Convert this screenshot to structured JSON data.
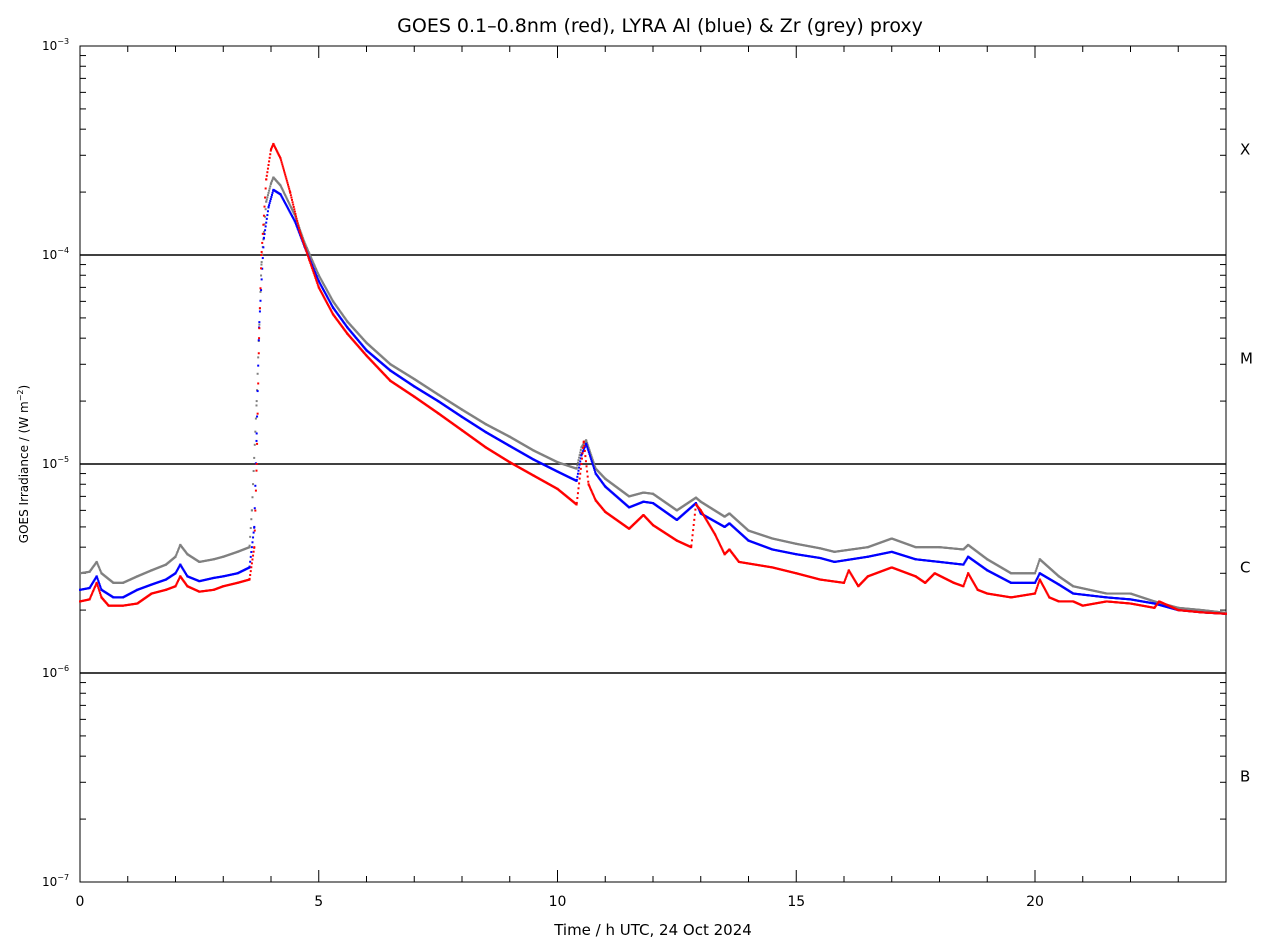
{
  "chart_data": {
    "type": "scatter",
    "title": "GOES 0.1–0.8nm (red), LYRA Al (blue) & Zr (grey) proxy",
    "xlabel": "Time / h UTC, 24 Oct 2024",
    "ylabel": "GOES Irradiance / (W m⁻²)",
    "ylabel_base": "GOES Irradiance / (W m",
    "ylabel_sup": "−2",
    "ylabel_end": ")",
    "xlim": [
      0,
      24
    ],
    "ylim": [
      1e-07,
      0.001
    ],
    "yscale": "log",
    "x_ticks": [
      0,
      5,
      10,
      15,
      20
    ],
    "x_tick_labels": [
      "0",
      "5",
      "10",
      "15",
      "20"
    ],
    "y_ticks": [
      {
        "value": 0.001,
        "base": "10",
        "exp": "−3"
      },
      {
        "value": 0.0001,
        "base": "10",
        "exp": "−4"
      },
      {
        "value": 1e-05,
        "base": "10",
        "exp": "−5"
      },
      {
        "value": 1e-06,
        "base": "10",
        "exp": "−6"
      },
      {
        "value": 1e-07,
        "base": "10",
        "exp": "−7"
      }
    ],
    "class_lines": [
      0.0001,
      1e-05,
      1e-06
    ],
    "class_labels": [
      {
        "label": "X",
        "value": 0.00032
      },
      {
        "label": "M",
        "value": 3.2e-05
      },
      {
        "label": "C",
        "value": 3.2e-06
      },
      {
        "label": "B",
        "value": 3.2e-07
      }
    ],
    "colors": {
      "goes": "#ff0000",
      "al": "#0000ff",
      "zr": "#808080",
      "axis": "#000000"
    },
    "series": [
      {
        "name": "GOES 0.1–0.8nm",
        "color": "#ff0000",
        "points": [
          [
            0.0,
            2.2e-06
          ],
          [
            0.2,
            2.25e-06
          ],
          [
            0.35,
            2.7e-06
          ],
          [
            0.45,
            2.3e-06
          ],
          [
            0.6,
            2.1e-06
          ],
          [
            0.9,
            2.1e-06
          ],
          [
            1.2,
            2.15e-06
          ],
          [
            1.5,
            2.4e-06
          ],
          [
            1.8,
            2.5e-06
          ],
          [
            2.0,
            2.6e-06
          ],
          [
            2.1,
            2.9e-06
          ],
          [
            2.25,
            2.6e-06
          ],
          [
            2.5,
            2.45e-06
          ],
          [
            2.8,
            2.5e-06
          ],
          [
            3.0,
            2.6e-06
          ],
          [
            3.3,
            2.7e-06
          ],
          [
            3.55,
            2.8e-06
          ],
          [
            3.65,
            4e-06
          ],
          [
            3.7,
            1e-05
          ],
          [
            3.75,
            4e-05
          ],
          [
            3.8,
            0.0001
          ],
          [
            3.9,
            0.00023
          ],
          [
            4.0,
            0.00032
          ],
          [
            4.05,
            0.00034
          ],
          [
            4.2,
            0.00029
          ],
          [
            4.4,
            0.0002
          ],
          [
            4.6,
            0.00013
          ],
          [
            4.8,
            9.5e-05
          ],
          [
            5.0,
            7e-05
          ],
          [
            5.3,
            5.2e-05
          ],
          [
            5.6,
            4.2e-05
          ],
          [
            6.0,
            3.3e-05
          ],
          [
            6.5,
            2.5e-05
          ],
          [
            7.0,
            2.1e-05
          ],
          [
            7.5,
            1.75e-05
          ],
          [
            8.0,
            1.45e-05
          ],
          [
            8.5,
            1.2e-05
          ],
          [
            9.0,
            1.02e-05
          ],
          [
            9.5,
            8.8e-06
          ],
          [
            10.0,
            7.6e-06
          ],
          [
            10.4,
            6.4e-06
          ],
          [
            10.5,
            1e-05
          ],
          [
            10.55,
            1.28e-05
          ],
          [
            10.65,
            8e-06
          ],
          [
            10.8,
            6.7e-06
          ],
          [
            11.0,
            5.9e-06
          ],
          [
            11.5,
            4.9e-06
          ],
          [
            11.8,
            5.7e-06
          ],
          [
            12.0,
            5.1e-06
          ],
          [
            12.5,
            4.3e-06
          ],
          [
            12.8,
            4e-06
          ],
          [
            12.9,
            6.4e-06
          ],
          [
            13.0,
            6e-06
          ],
          [
            13.3,
            4.6e-06
          ],
          [
            13.5,
            3.7e-06
          ],
          [
            13.6,
            3.9e-06
          ],
          [
            13.8,
            3.4e-06
          ],
          [
            14.5,
            3.2e-06
          ],
          [
            15.0,
            3e-06
          ],
          [
            15.5,
            2.8e-06
          ],
          [
            16.0,
            2.7e-06
          ],
          [
            16.1,
            3.1e-06
          ],
          [
            16.3,
            2.6e-06
          ],
          [
            16.5,
            2.9e-06
          ],
          [
            17.0,
            3.2e-06
          ],
          [
            17.5,
            2.9e-06
          ],
          [
            17.7,
            2.7e-06
          ],
          [
            17.9,
            3e-06
          ],
          [
            18.3,
            2.7e-06
          ],
          [
            18.5,
            2.6e-06
          ],
          [
            18.6,
            3e-06
          ],
          [
            18.8,
            2.5e-06
          ],
          [
            19.0,
            2.4e-06
          ],
          [
            19.5,
            2.3e-06
          ],
          [
            20.0,
            2.4e-06
          ],
          [
            20.1,
            2.8e-06
          ],
          [
            20.3,
            2.3e-06
          ],
          [
            20.5,
            2.2e-06
          ],
          [
            20.8,
            2.2e-06
          ],
          [
            21.0,
            2.1e-06
          ],
          [
            21.5,
            2.2e-06
          ],
          [
            22.0,
            2.15e-06
          ],
          [
            22.5,
            2.05e-06
          ],
          [
            22.6,
            2.2e-06
          ],
          [
            23.0,
            2e-06
          ],
          [
            23.5,
            1.95e-06
          ],
          [
            24.0,
            1.92e-06
          ]
        ]
      },
      {
        "name": "LYRA Al",
        "color": "#0000ff",
        "points": [
          [
            0.0,
            2.5e-06
          ],
          [
            0.2,
            2.55e-06
          ],
          [
            0.35,
            2.9e-06
          ],
          [
            0.45,
            2.5e-06
          ],
          [
            0.7,
            2.3e-06
          ],
          [
            0.9,
            2.3e-06
          ],
          [
            1.2,
            2.5e-06
          ],
          [
            1.5,
            2.65e-06
          ],
          [
            1.8,
            2.8e-06
          ],
          [
            2.0,
            3e-06
          ],
          [
            2.1,
            3.3e-06
          ],
          [
            2.25,
            2.9e-06
          ],
          [
            2.5,
            2.75e-06
          ],
          [
            2.8,
            2.85e-06
          ],
          [
            3.0,
            2.9e-06
          ],
          [
            3.3,
            3e-06
          ],
          [
            3.55,
            3.2e-06
          ],
          [
            3.65,
            5e-06
          ],
          [
            3.7,
            1.4e-05
          ],
          [
            3.75,
            4.5e-05
          ],
          [
            3.85,
            0.00012
          ],
          [
            3.95,
            0.00017
          ],
          [
            4.05,
            0.000205
          ],
          [
            4.2,
            0.000195
          ],
          [
            4.5,
            0.000145
          ],
          [
            4.7,
            0.00011
          ],
          [
            5.0,
            7.5e-05
          ],
          [
            5.3,
            5.6e-05
          ],
          [
            5.6,
            4.5e-05
          ],
          [
            6.0,
            3.5e-05
          ],
          [
            6.5,
            2.8e-05
          ],
          [
            7.0,
            2.35e-05
          ],
          [
            7.5,
            2e-05
          ],
          [
            8.0,
            1.68e-05
          ],
          [
            8.5,
            1.42e-05
          ],
          [
            9.0,
            1.22e-05
          ],
          [
            9.5,
            1.05e-05
          ],
          [
            10.0,
            9.2e-06
          ],
          [
            10.4,
            8.3e-06
          ],
          [
            10.5,
            1.1e-05
          ],
          [
            10.6,
            1.25e-05
          ],
          [
            10.8,
            9e-06
          ],
          [
            11.0,
            7.8e-06
          ],
          [
            11.5,
            6.2e-06
          ],
          [
            11.8,
            6.6e-06
          ],
          [
            12.0,
            6.5e-06
          ],
          [
            12.5,
            5.4e-06
          ],
          [
            12.9,
            6.5e-06
          ],
          [
            13.0,
            5.8e-06
          ],
          [
            13.5,
            5e-06
          ],
          [
            13.6,
            5.2e-06
          ],
          [
            14.0,
            4.3e-06
          ],
          [
            14.5,
            3.9e-06
          ],
          [
            15.0,
            3.7e-06
          ],
          [
            15.5,
            3.55e-06
          ],
          [
            15.8,
            3.4e-06
          ],
          [
            16.5,
            3.6e-06
          ],
          [
            17.0,
            3.8e-06
          ],
          [
            17.5,
            3.5e-06
          ],
          [
            18.0,
            3.4e-06
          ],
          [
            18.5,
            3.3e-06
          ],
          [
            18.6,
            3.6e-06
          ],
          [
            19.0,
            3.1e-06
          ],
          [
            19.5,
            2.7e-06
          ],
          [
            20.0,
            2.7e-06
          ],
          [
            20.1,
            3e-06
          ],
          [
            20.5,
            2.65e-06
          ],
          [
            20.8,
            2.4e-06
          ],
          [
            21.5,
            2.3e-06
          ],
          [
            22.0,
            2.25e-06
          ],
          [
            22.5,
            2.15e-06
          ],
          [
            23.0,
            2e-06
          ],
          [
            23.5,
            1.95e-06
          ],
          [
            24.0,
            1.92e-06
          ]
        ]
      },
      {
        "name": "LYRA Zr",
        "color": "#808080",
        "points": [
          [
            0.0,
            3e-06
          ],
          [
            0.2,
            3.05e-06
          ],
          [
            0.35,
            3.4e-06
          ],
          [
            0.45,
            3e-06
          ],
          [
            0.7,
            2.7e-06
          ],
          [
            0.9,
            2.7e-06
          ],
          [
            1.2,
            2.9e-06
          ],
          [
            1.5,
            3.1e-06
          ],
          [
            1.8,
            3.3e-06
          ],
          [
            2.0,
            3.6e-06
          ],
          [
            2.1,
            4.1e-06
          ],
          [
            2.25,
            3.7e-06
          ],
          [
            2.5,
            3.4e-06
          ],
          [
            2.8,
            3.5e-06
          ],
          [
            3.0,
            3.6e-06
          ],
          [
            3.3,
            3.8e-06
          ],
          [
            3.55,
            4e-06
          ],
          [
            3.6,
            6e-06
          ],
          [
            3.7,
            2e-05
          ],
          [
            3.8,
            9e-05
          ],
          [
            3.9,
            0.00018
          ],
          [
            4.0,
            0.00022
          ],
          [
            4.05,
            0.000235
          ],
          [
            4.2,
            0.000215
          ],
          [
            4.5,
            0.000155
          ],
          [
            4.7,
            0.000115
          ],
          [
            5.0,
            8e-05
          ],
          [
            5.3,
            6e-05
          ],
          [
            5.6,
            4.8e-05
          ],
          [
            6.0,
            3.8e-05
          ],
          [
            6.5,
            3e-05
          ],
          [
            7.0,
            2.55e-05
          ],
          [
            7.5,
            2.15e-05
          ],
          [
            8.0,
            1.82e-05
          ],
          [
            8.5,
            1.55e-05
          ],
          [
            9.0,
            1.35e-05
          ],
          [
            9.5,
            1.16e-05
          ],
          [
            10.0,
            1.02e-05
          ],
          [
            10.4,
            9.5e-06
          ],
          [
            10.5,
            1.2e-05
          ],
          [
            10.6,
            1.3e-05
          ],
          [
            10.8,
            9.5e-06
          ],
          [
            11.0,
            8.5e-06
          ],
          [
            11.5,
            7e-06
          ],
          [
            11.8,
            7.3e-06
          ],
          [
            12.0,
            7.2e-06
          ],
          [
            12.5,
            6e-06
          ],
          [
            12.9,
            6.9e-06
          ],
          [
            13.0,
            6.6e-06
          ],
          [
            13.5,
            5.6e-06
          ],
          [
            13.6,
            5.8e-06
          ],
          [
            14.0,
            4.8e-06
          ],
          [
            14.5,
            4.4e-06
          ],
          [
            15.0,
            4.15e-06
          ],
          [
            15.5,
            3.95e-06
          ],
          [
            15.8,
            3.8e-06
          ],
          [
            16.5,
            4e-06
          ],
          [
            17.0,
            4.4e-06
          ],
          [
            17.5,
            4e-06
          ],
          [
            18.0,
            4e-06
          ],
          [
            18.5,
            3.9e-06
          ],
          [
            18.6,
            4.1e-06
          ],
          [
            19.0,
            3.5e-06
          ],
          [
            19.5,
            3e-06
          ],
          [
            20.0,
            3e-06
          ],
          [
            20.1,
            3.5e-06
          ],
          [
            20.5,
            2.9e-06
          ],
          [
            20.8,
            2.6e-06
          ],
          [
            21.5,
            2.4e-06
          ],
          [
            22.0,
            2.4e-06
          ],
          [
            22.5,
            2.2e-06
          ],
          [
            23.0,
            2.05e-06
          ],
          [
            23.5,
            2e-06
          ],
          [
            24.0,
            1.94e-06
          ]
        ]
      }
    ]
  }
}
